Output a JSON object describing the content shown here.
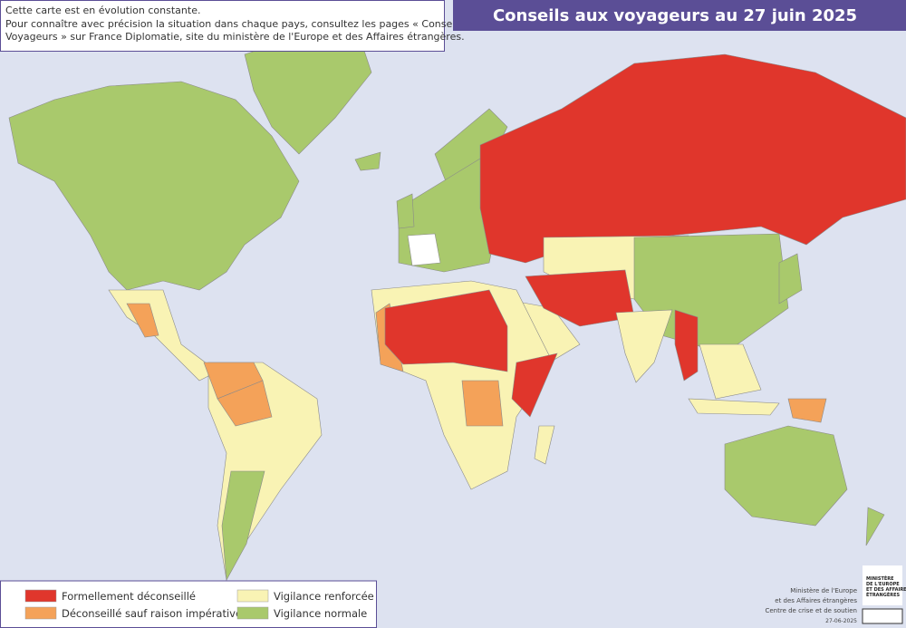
{
  "title": "Conseils aux voyageurs au 27 juin 2025",
  "note": [
    "Cette carte est en évolution constante.",
    "Pour connaître avec précision la situation dans chaque pays, consultez les pages « Conseils aux",
    "Voyageurs » sur France Diplomatie, site du ministère de l'Europe et des Affaires étrangères."
  ],
  "legend": [
    {
      "label": "Formellement déconseillé",
      "color": "#e0362c"
    },
    {
      "label": "Déconseillé sauf raison impérative",
      "color": "#f4a259"
    },
    {
      "label": "Vigilance renforcée",
      "color": "#f9f3b4"
    },
    {
      "label": "Vigilance normale",
      "color": "#a9c96c"
    }
  ],
  "credits": [
    "Ministère de l'Europe",
    "et des Affaires étrangères",
    "Centre de crise et de soutien",
    "27-06-2025"
  ],
  "logo": [
    "MINISTÈRE",
    "DE L'EUROPE",
    "ET DES AFFAIRES",
    "ÉTRANGÈRES"
  ]
}
